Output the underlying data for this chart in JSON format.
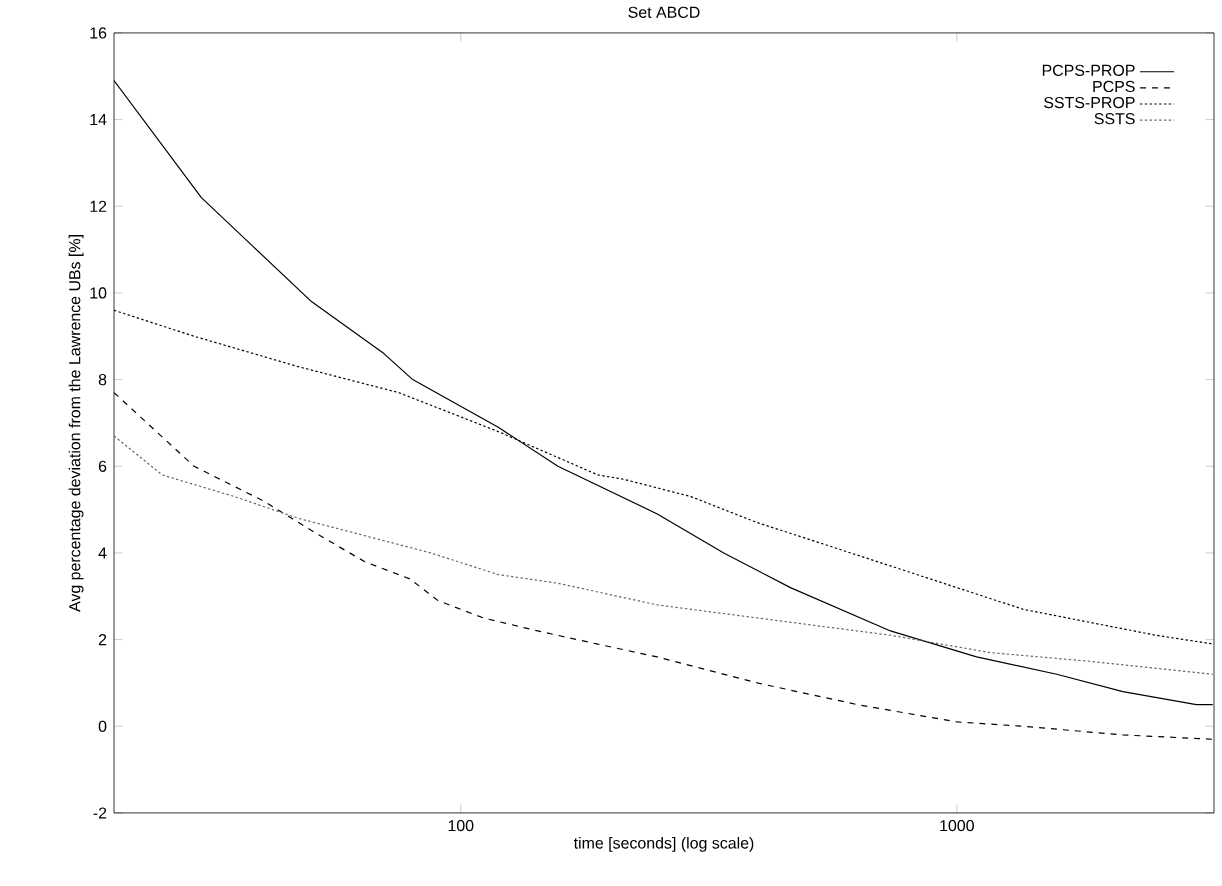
{
  "chart_data": {
    "type": "line",
    "title": "Set ABCD",
    "xlabel": "time [seconds]  (log scale)",
    "ylabel": "Avg percentage deviation from the Lawrence UBs [%]",
    "log": "x",
    "xlim": [
      20,
      3300
    ],
    "xticks": [
      100,
      1000
    ],
    "ylim": [
      -2,
      16
    ],
    "yticks": [
      -2,
      0,
      2,
      4,
      6,
      8,
      10,
      12,
      14,
      16
    ],
    "legend": "top right",
    "series": [
      {
        "name": "PCPS-PROP",
        "color": "#000000",
        "line_style": "solid",
        "x": [
          20,
          30,
          50,
          70,
          80,
          119,
          157,
          249,
          339,
          462,
          735,
          1096,
          1590,
          2162,
          3040,
          3280
        ],
        "values": [
          14.9,
          12.2,
          9.8,
          8.6,
          8.0,
          6.9,
          6.0,
          4.9,
          4.0,
          3.2,
          2.2,
          1.6,
          1.2,
          0.8,
          0.5,
          0.5
        ]
      },
      {
        "name": "PCPS",
        "color": "#000000",
        "line_style": "dashed",
        "x": [
          20,
          29,
          40,
          52,
          64,
          79,
          90,
          111,
          143,
          188,
          249,
          396,
          630,
          1000,
          1360,
          2162,
          3280
        ],
        "values": [
          7.7,
          6.0,
          5.2,
          4.4,
          3.8,
          3.4,
          2.9,
          2.5,
          2.2,
          1.9,
          1.6,
          1.0,
          0.5,
          0.1,
          0.0,
          -0.2,
          -0.3
        ]
      },
      {
        "name": "SSTS-PROP",
        "color": "#000000",
        "line_style": "dotted",
        "x": [
          20,
          29,
          47,
          75,
          119,
          189,
          213,
          291,
          396,
          540,
          735,
          1000,
          1360,
          1850,
          2520,
          3280
        ],
        "values": [
          9.6,
          9.0,
          8.3,
          7.7,
          6.8,
          5.8,
          5.7,
          5.3,
          4.7,
          4.2,
          3.7,
          3.2,
          2.7,
          2.4,
          2.1,
          1.9
        ]
      },
      {
        "name": "SSTS",
        "color": "#666666",
        "line_style": "dotted",
        "x": [
          20,
          25,
          35,
          47,
          64,
          87,
          119,
          157,
          249,
          396,
          735,
          1167,
          1850,
          3280
        ],
        "values": [
          6.7,
          5.8,
          5.3,
          4.8,
          4.4,
          4.0,
          3.5,
          3.3,
          2.8,
          2.5,
          2.1,
          1.7,
          1.5,
          1.2
        ]
      }
    ]
  }
}
